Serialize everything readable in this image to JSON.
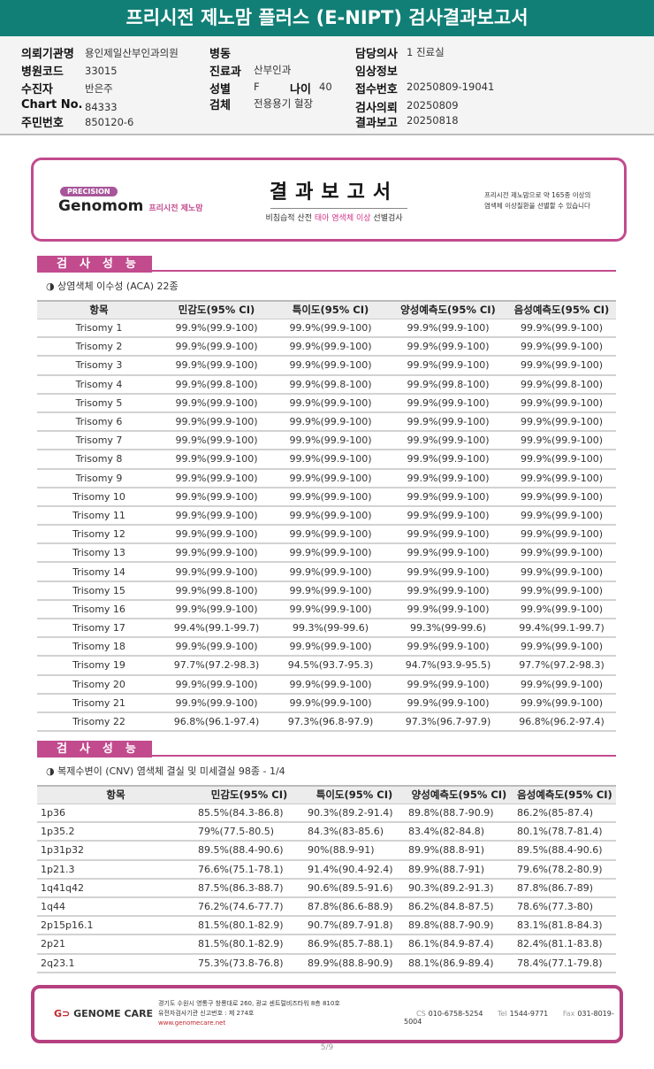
{
  "title": "프리시전 제노맘 플러스 (E-NIPT) 검사결과보고서",
  "info": {
    "hospital_label": "의뢰기관명",
    "hospital": "용인제일산부인과의원",
    "code_label": "병원코드",
    "code": "33015",
    "patient_label": "수진자",
    "patient": "반은주",
    "chart_label": "Chart No.",
    "chart": "84333",
    "id_label": "주민번호",
    "id": "850120-6",
    "ward_label": "병동",
    "ward": "",
    "dept_label": "진료과",
    "dept": "산부인과",
    "sex_label": "성별",
    "sex": "F",
    "age_label": "나이",
    "age": "40",
    "specimen_label": "검체",
    "specimen": "전용용기 혈장",
    "doctor_label": "담당의사",
    "doctor": "1 진료실",
    "clinical_label": "임상정보",
    "clinical": "",
    "receipt_label": "접수번호",
    "receipt": "20250809-19041",
    "request_label": "검사의뢰",
    "request": "20250809",
    "report_label": "결과보고",
    "report": "20250818"
  },
  "banner": {
    "precision": "PRECISION",
    "brand": "Genomom",
    "brand_sub": "프리시전 제노맘",
    "title": "결과보고서",
    "subtitle_pre": "비침습적 산전 ",
    "subtitle_hl": "태아 염색체 이상",
    "subtitle_post": " 선별검사",
    "note_line1": "프리시전 제노맘으로 약 165종 이상의",
    "note_line2": "염색체 이상질환을 선별할 수 있습니다"
  },
  "section1": {
    "heading": "검사성능",
    "subtitle": "◑ 상염색체 이수성 (ACA) 22종",
    "columns": [
      "항목",
      "민감도(95% CI)",
      "특이도(95% CI)",
      "양성예측도(95% CI)",
      "음성예측도(95% CI)"
    ],
    "rows": [
      [
        "Trisomy 1",
        "99.9%(99.9-100)",
        "99.9%(99.9-100)",
        "99.9%(99.9-100)",
        "99.9%(99.9-100)"
      ],
      [
        "Trisomy 2",
        "99.9%(99.9-100)",
        "99.9%(99.9-100)",
        "99.9%(99.9-100)",
        "99.9%(99.9-100)"
      ],
      [
        "Trisomy 3",
        "99.9%(99.9-100)",
        "99.9%(99.9-100)",
        "99.9%(99.9-100)",
        "99.9%(99.9-100)"
      ],
      [
        "Trisomy 4",
        "99.9%(99.8-100)",
        "99.9%(99.8-100)",
        "99.9%(99.8-100)",
        "99.9%(99.8-100)"
      ],
      [
        "Trisomy 5",
        "99.9%(99.9-100)",
        "99.9%(99.9-100)",
        "99.9%(99.9-100)",
        "99.9%(99.9-100)"
      ],
      [
        "Trisomy 6",
        "99.9%(99.9-100)",
        "99.9%(99.9-100)",
        "99.9%(99.9-100)",
        "99.9%(99.9-100)"
      ],
      [
        "Trisomy 7",
        "99.9%(99.9-100)",
        "99.9%(99.9-100)",
        "99.9%(99.9-100)",
        "99.9%(99.9-100)"
      ],
      [
        "Trisomy 8",
        "99.9%(99.9-100)",
        "99.9%(99.9-100)",
        "99.9%(99.9-100)",
        "99.9%(99.9-100)"
      ],
      [
        "Trisomy 9",
        "99.9%(99.9-100)",
        "99.9%(99.9-100)",
        "99.9%(99.9-100)",
        "99.9%(99.9-100)"
      ],
      [
        "Trisomy 10",
        "99.9%(99.9-100)",
        "99.9%(99.9-100)",
        "99.9%(99.9-100)",
        "99.9%(99.9-100)"
      ],
      [
        "Trisomy 11",
        "99.9%(99.9-100)",
        "99.9%(99.9-100)",
        "99.9%(99.9-100)",
        "99.9%(99.9-100)"
      ],
      [
        "Trisomy 12",
        "99.9%(99.9-100)",
        "99.9%(99.9-100)",
        "99.9%(99.9-100)",
        "99.9%(99.9-100)"
      ],
      [
        "Trisomy 13",
        "99.9%(99.9-100)",
        "99.9%(99.9-100)",
        "99.9%(99.9-100)",
        "99.9%(99.9-100)"
      ],
      [
        "Trisomy 14",
        "99.9%(99.9-100)",
        "99.9%(99.9-100)",
        "99.9%(99.9-100)",
        "99.9%(99.9-100)"
      ],
      [
        "Trisomy 15",
        "99.9%(99.8-100)",
        "99.9%(99.9-100)",
        "99.9%(99.9-100)",
        "99.9%(99.9-100)"
      ],
      [
        "Trisomy 16",
        "99.9%(99.9-100)",
        "99.9%(99.9-100)",
        "99.9%(99.9-100)",
        "99.9%(99.9-100)"
      ],
      [
        "Trisomy 17",
        "99.4%(99.1-99.7)",
        "99.3%(99-99.6)",
        "99.3%(99-99.6)",
        "99.4%(99.1-99.7)"
      ],
      [
        "Trisomy 18",
        "99.9%(99.9-100)",
        "99.9%(99.9-100)",
        "99.9%(99.9-100)",
        "99.9%(99.9-100)"
      ],
      [
        "Trisomy 19",
        "97.7%(97.2-98.3)",
        "94.5%(93.7-95.3)",
        "94.7%(93.9-95.5)",
        "97.7%(97.2-98.3)"
      ],
      [
        "Trisomy 20",
        "99.9%(99.9-100)",
        "99.9%(99.9-100)",
        "99.9%(99.9-100)",
        "99.9%(99.9-100)"
      ],
      [
        "Trisomy 21",
        "99.9%(99.9-100)",
        "99.9%(99.9-100)",
        "99.9%(99.9-100)",
        "99.9%(99.9-100)"
      ],
      [
        "Trisomy 22",
        "96.8%(96.1-97.4)",
        "97.3%(96.8-97.9)",
        "97.3%(96.7-97.9)",
        "96.8%(96.2-97.4)"
      ]
    ]
  },
  "section2": {
    "heading": "검사성능",
    "subtitle": "◑ 복제수변이 (CNV) 염색체 결실 및 미세결실 98종 - 1/4",
    "columns": [
      "항목",
      "민감도(95% CI)",
      "특이도(95% CI)",
      "양성예측도(95% CI)",
      "음성예측도(95% CI)"
    ],
    "rows": [
      [
        "1p36",
        "85.5%(84.3-86.8)",
        "90.3%(89.2-91.4)",
        "89.8%(88.7-90.9)",
        "86.2%(85-87.4)"
      ],
      [
        "1p35.2",
        "79%(77.5-80.5)",
        "84.3%(83-85.6)",
        "83.4%(82-84.8)",
        "80.1%(78.7-81.4)"
      ],
      [
        "1p31p32",
        "89.5%(88.4-90.6)",
        "90%(88.9-91)",
        "89.9%(88.8-91)",
        "89.5%(88.4-90.6)"
      ],
      [
        "1p21.3",
        "76.6%(75.1-78.1)",
        "91.4%(90.4-92.4)",
        "89.9%(88.7-91)",
        "79.6%(78.2-80.9)"
      ],
      [
        "1q41q42",
        "87.5%(86.3-88.7)",
        "90.6%(89.5-91.6)",
        "90.3%(89.2-91.3)",
        "87.8%(86.7-89)"
      ],
      [
        "1q44",
        "76.2%(74.6-77.7)",
        "87.8%(86.6-88.9)",
        "86.2%(84.8-87.5)",
        "78.6%(77.3-80)"
      ],
      [
        "2p15p16.1",
        "81.5%(80.1-82.9)",
        "90.7%(89.7-91.8)",
        "89.8%(88.7-90.9)",
        "83.1%(81.8-84.3)"
      ],
      [
        "2p21",
        "81.5%(80.1-82.9)",
        "86.9%(85.7-88.1)",
        "86.1%(84.9-87.4)",
        "82.4%(81.1-83.8)"
      ],
      [
        "2q23.1",
        "75.3%(73.8-76.8)",
        "89.9%(88.8-90.9)",
        "88.1%(86.9-89.4)",
        "78.4%(77.1-79.8)"
      ]
    ]
  },
  "footer": {
    "logo": "GENOME CARE",
    "address": "경기도 수원시 영통구 창룡대로 260, 광교 센트럴비즈타워 8층 810호",
    "license": "유전자검사기관 신고번호 : 제 274호",
    "website": "www.genomecare.net",
    "cs_label": "CS",
    "cs": "010-6758-5254",
    "tel_label": "Tel",
    "tel": "1544-9771",
    "fax_label": "Fax",
    "fax": "031-8019-5004"
  },
  "page": "5/9",
  "colors": {
    "title_bar": "#117f76",
    "accent": "#c24b8e"
  }
}
